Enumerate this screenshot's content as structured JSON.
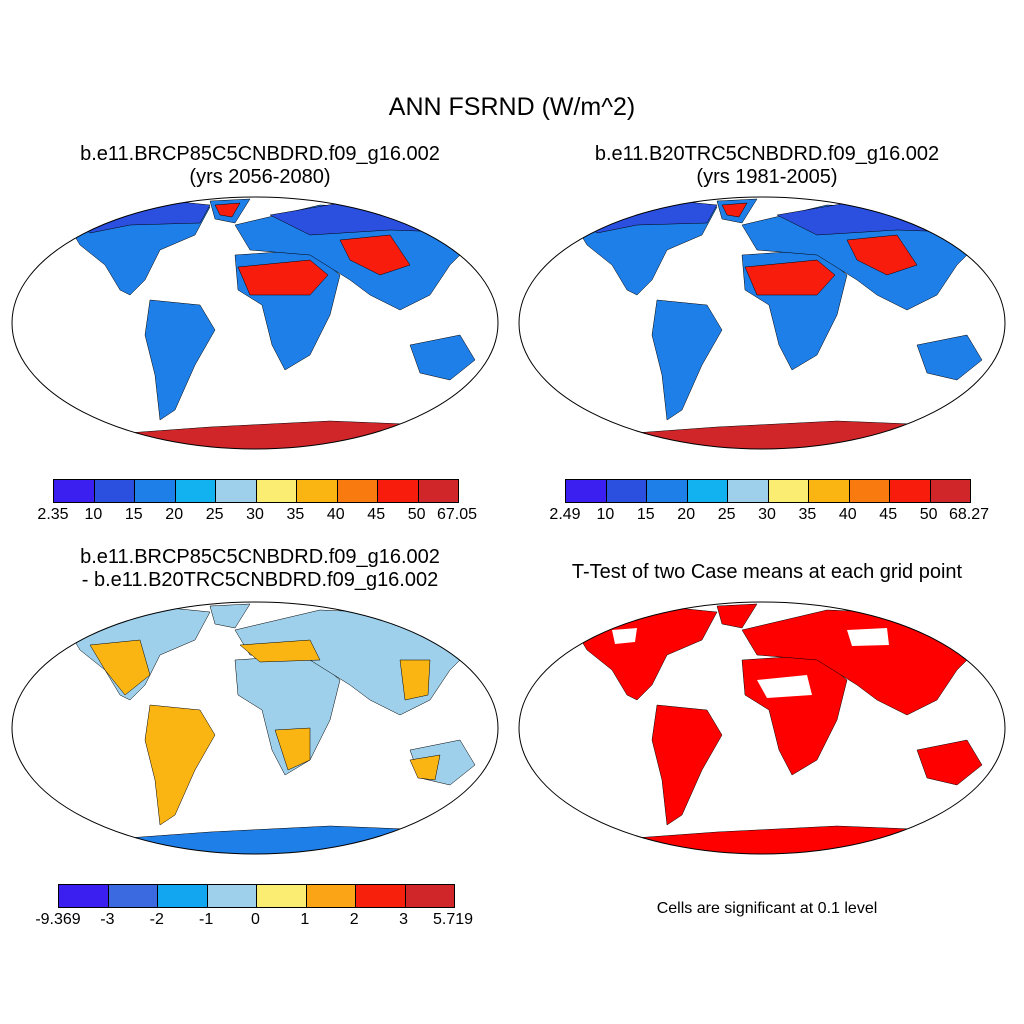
{
  "title": "ANN FSRND (W/m^2)",
  "panels": [
    {
      "title_line1": "b.e11.BRCP85C5CNBDRD.f09_g16.002",
      "title_line2": "(yrs 2056-2080)"
    },
    {
      "title_line1": "b.e11.B20TRC5CNBDRD.f09_g16.002",
      "title_line2": "(yrs 1981-2005)"
    },
    {
      "title_line1": "b.e11.BRCP85C5CNBDRD.f09_g16.002",
      "title_line2": "- b.e11.B20TRC5CNBDRD.f09_g16.002"
    },
    {
      "title_line1": "T-Test of two Case means at each grid point",
      "note": "Cells are significant at 0.1 level"
    }
  ],
  "colorbars": [
    {
      "labels": [
        "2.35",
        "10",
        "15",
        "20",
        "25",
        "30",
        "35",
        "40",
        "45",
        "50",
        "67.05"
      ],
      "colors": [
        "#3a1ff0",
        "#2b50e0",
        "#1f7fe8",
        "#12b2f0",
        "#9ed0ec",
        "#fbec72",
        "#fbb513",
        "#f97b10",
        "#f71c0c",
        "#d0262a"
      ]
    },
    {
      "labels": [
        "2.49",
        "10",
        "15",
        "20",
        "25",
        "30",
        "35",
        "40",
        "45",
        "50",
        "68.27"
      ],
      "colors": [
        "#3a1ff0",
        "#2b50e0",
        "#1f7fe8",
        "#12b2f0",
        "#9ed0ec",
        "#fbec72",
        "#fbb513",
        "#f97b10",
        "#f71c0c",
        "#d0262a"
      ]
    },
    {
      "labels": [
        "-9.369",
        "-3",
        "-2",
        "-1",
        "0",
        "1",
        "2",
        "3",
        "5.719"
      ],
      "colors": [
        "#3a1ff0",
        "#3b6ae0",
        "#12a6f0",
        "#9ed0ec",
        "#fbec72",
        "#fba415",
        "#f7200c",
        "#d0262a"
      ]
    }
  ],
  "map_colors": {
    "land_base": "#1f7fe8",
    "land_high_lat": "#2b50e0",
    "desert": "#f71c0c",
    "antarctica": "#d0262a",
    "diff_base": "#9ed0ec",
    "diff_warm": "#fbb513",
    "significant": "#ff0000"
  }
}
